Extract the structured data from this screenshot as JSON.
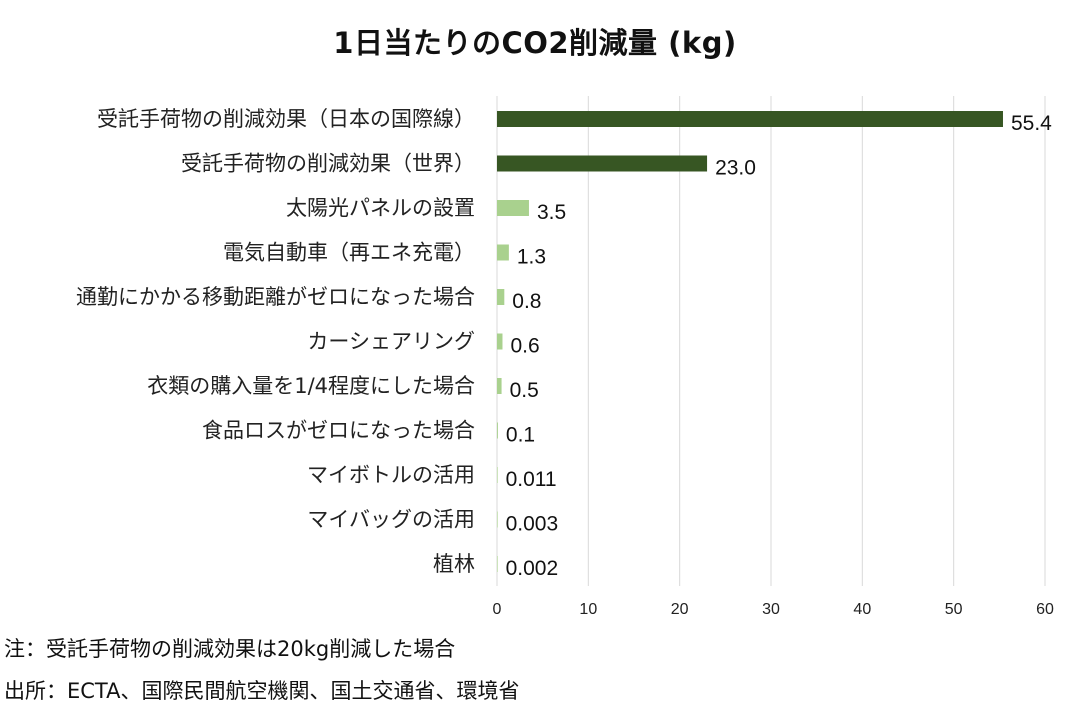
{
  "chart_data": {
    "type": "bar",
    "orientation": "horizontal",
    "title": "1日当たりのCO2削減量 (kg)",
    "categories": [
      "受託手荷物の削減効果（日本の国際線）",
      "受託手荷物の削減効果（世界）",
      "太陽光パネルの設置",
      "電気自動車（再エネ充電）",
      "通勤にかかる移動距離がゼロになった場合",
      "カーシェアリング",
      "衣類の購入量を1/4程度にした場合",
      "食品ロスがゼロになった場合",
      "マイボトルの活用",
      "マイバッグの活用",
      "植林"
    ],
    "values": [
      55.4,
      23.0,
      3.5,
      1.3,
      0.8,
      0.6,
      0.5,
      0.1,
      0.011,
      0.003,
      0.002
    ],
    "value_labels": [
      "55.4",
      "23.0",
      "3.5",
      "1.3",
      "0.8",
      "0.6",
      "0.5",
      "0.1",
      "0.011",
      "0.003",
      "0.002"
    ],
    "bar_colors": [
      "#375623",
      "#375623",
      "#a9d18e",
      "#a9d18e",
      "#a9d18e",
      "#a9d18e",
      "#a9d18e",
      "#a9d18e",
      "#a9d18e",
      "#a9d18e",
      "#a9d18e"
    ],
    "xlim": [
      0,
      60
    ],
    "xticks": [
      "0",
      "10",
      "20",
      "30",
      "40",
      "50",
      "60"
    ],
    "xlabel": "",
    "ylabel": "",
    "grid": "vertical"
  },
  "notes": {
    "note": "注：受託手荷物の削減効果は20kg削減した場合",
    "source": "出所：ECTA、国際民間航空機関、国土交通省、環境省"
  },
  "colors": {
    "dark_bar": "#375623",
    "light_bar": "#a9d18e",
    "grid": "#d9d9d9"
  }
}
